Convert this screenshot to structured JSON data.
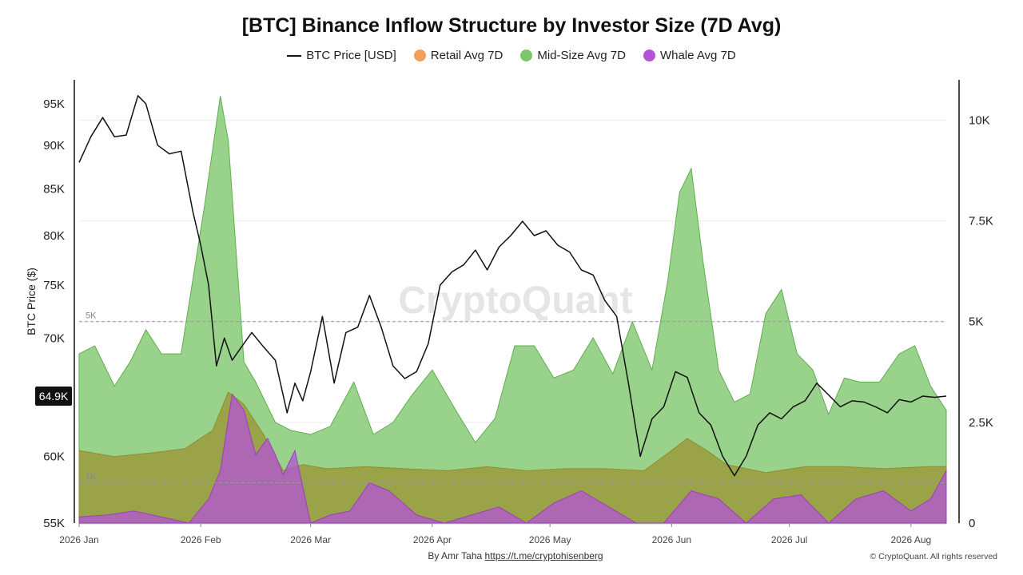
{
  "title": "[BTC] Binance Inflow Structure by Investor Size (7D Avg)",
  "legend": {
    "price": "BTC Price [USD]",
    "retail": "Retail Avg 7D",
    "midsize": "Mid-Size Avg 7D",
    "whale": "Whale Avg 7D"
  },
  "colors": {
    "price": "#111111",
    "retail": "#f0a05a",
    "midsize": "#7cc66a",
    "whale": "#b453d6",
    "midsize_fill": "#7cc66a",
    "olive_overlap": "#9a9a3c"
  },
  "watermark": "CryptoQuant",
  "price_badge": "64.9K",
  "footer": {
    "author_prefix": "By Amr Taha",
    "author_link": "https://t.me/cryptohisenberg",
    "copyright": "© CryptoQuant. All rights reserved"
  },
  "chart_data": {
    "type": "line",
    "title": "[BTC] Binance Inflow Structure by Investor Size (7D Avg)",
    "ylabel_left": "BTC Price ($)",
    "ylabel_right": "",
    "x_range": [
      "2026-01-01",
      "2026-08-10"
    ],
    "x_ticks": [
      "2026 Jan",
      "2026 Feb",
      "2026 Mar",
      "2026 Apr",
      "2026 May",
      "2026 Jun",
      "2026 Jul",
      "2026 Aug"
    ],
    "y_left_ticks": [
      "55K",
      "60K",
      "65K",
      "70K",
      "75K",
      "80K",
      "85K",
      "90K",
      "95K"
    ],
    "y_left_scale": "log",
    "y_left_range": [
      55000,
      98000
    ],
    "y_right_ticks": [
      "0",
      "2.5K",
      "5K",
      "7.5K",
      "10K"
    ],
    "y_right_range": [
      0,
      11000
    ],
    "reference_lines": [
      {
        "label": "5K",
        "value": 5000
      },
      {
        "label": "1K",
        "value": 1000
      }
    ],
    "grid": true,
    "legend_position": "top-center",
    "series": [
      {
        "name": "BTC Price [USD]",
        "axis": "left",
        "style": "line",
        "x": [
          "2026-01-01",
          "2026-01-04",
          "2026-01-07",
          "2026-01-10",
          "2026-01-13",
          "2026-01-16",
          "2026-01-18",
          "2026-01-21",
          "2026-01-24",
          "2026-01-27",
          "2026-01-30",
          "2026-02-01",
          "2026-02-03",
          "2026-02-05",
          "2026-02-07",
          "2026-02-09",
          "2026-02-11",
          "2026-02-14",
          "2026-02-17",
          "2026-02-20",
          "2026-02-23",
          "2026-02-25",
          "2026-02-27",
          "2026-03-01",
          "2026-03-04",
          "2026-03-07",
          "2026-03-10",
          "2026-03-13",
          "2026-03-16",
          "2026-03-19",
          "2026-03-22",
          "2026-03-25",
          "2026-03-28",
          "2026-03-31",
          "2026-04-03",
          "2026-04-06",
          "2026-04-09",
          "2026-04-12",
          "2026-04-15",
          "2026-04-18",
          "2026-04-21",
          "2026-04-24",
          "2026-04-27",
          "2026-04-30",
          "2026-05-03",
          "2026-05-06",
          "2026-05-09",
          "2026-05-12",
          "2026-05-15",
          "2026-05-18",
          "2026-05-21",
          "2026-05-24",
          "2026-05-27",
          "2026-05-30",
          "2026-06-02",
          "2026-06-05",
          "2026-06-08",
          "2026-06-11",
          "2026-06-14",
          "2026-06-17",
          "2026-06-20",
          "2026-06-23",
          "2026-06-26",
          "2026-06-29",
          "2026-07-02",
          "2026-07-05",
          "2026-07-08",
          "2026-07-11",
          "2026-07-14",
          "2026-07-17",
          "2026-07-20",
          "2026-07-23",
          "2026-07-26",
          "2026-07-29",
          "2026-08-01",
          "2026-08-04",
          "2026-08-07",
          "2026-08-10"
        ],
        "values": [
          88000,
          91000,
          93300,
          91000,
          91200,
          96000,
          95000,
          90000,
          89000,
          89300,
          82500,
          79000,
          75000,
          67500,
          70000,
          68000,
          69000,
          70500,
          69200,
          68000,
          63500,
          66000,
          64500,
          67000,
          72000,
          66000,
          70500,
          71000,
          74000,
          71000,
          67500,
          66400,
          67000,
          69500,
          75000,
          76300,
          77000,
          78500,
          76500,
          78800,
          80000,
          81500,
          80000,
          80500,
          79000,
          78300,
          76500,
          76000,
          73500,
          72000,
          66000,
          60000,
          63000,
          64000,
          67000,
          66500,
          63500,
          62500,
          60000,
          58500,
          60000,
          62500,
          63500,
          63000,
          64000,
          64500,
          66000,
          65000,
          64000,
          64500,
          64400,
          64000,
          63500,
          64600,
          64400,
          64900,
          64800,
          64900
        ]
      },
      {
        "name": "Retail Avg 7D",
        "axis": "right",
        "style": "area",
        "x": [
          "2026-01-01",
          "2026-01-10",
          "2026-01-20",
          "2026-01-28",
          "2026-02-04",
          "2026-02-08",
          "2026-02-12",
          "2026-02-17",
          "2026-02-22",
          "2026-02-27",
          "2026-03-05",
          "2026-03-15",
          "2026-03-25",
          "2026-04-05",
          "2026-04-15",
          "2026-04-25",
          "2026-05-05",
          "2026-05-15",
          "2026-05-25",
          "2026-06-01",
          "2026-06-05",
          "2026-06-10",
          "2026-06-15",
          "2026-06-25",
          "2026-07-05",
          "2026-07-15",
          "2026-07-25",
          "2026-08-05",
          "2026-08-10"
        ],
        "values": [
          1800,
          1650,
          1750,
          1850,
          2300,
          3250,
          2950,
          2200,
          1300,
          1450,
          1350,
          1400,
          1350,
          1300,
          1400,
          1300,
          1350,
          1350,
          1300,
          1800,
          2100,
          1800,
          1450,
          1250,
          1400,
          1400,
          1350,
          1400,
          1400
        ]
      },
      {
        "name": "Mid-Size Avg 7D",
        "axis": "right",
        "style": "area",
        "x": [
          "2026-01-01",
          "2026-01-05",
          "2026-01-10",
          "2026-01-14",
          "2026-01-18",
          "2026-01-22",
          "2026-01-27",
          "2026-02-02",
          "2026-02-06",
          "2026-02-08",
          "2026-02-12",
          "2026-02-15",
          "2026-02-20",
          "2026-02-24",
          "2026-03-01",
          "2026-03-06",
          "2026-03-12",
          "2026-03-17",
          "2026-03-22",
          "2026-03-27",
          "2026-04-01",
          "2026-04-07",
          "2026-04-12",
          "2026-04-17",
          "2026-04-22",
          "2026-04-27",
          "2026-05-02",
          "2026-05-07",
          "2026-05-12",
          "2026-05-17",
          "2026-05-22",
          "2026-05-27",
          "2026-05-31",
          "2026-06-03",
          "2026-06-06",
          "2026-06-09",
          "2026-06-13",
          "2026-06-17",
          "2026-06-21",
          "2026-06-25",
          "2026-06-29",
          "2026-07-03",
          "2026-07-07",
          "2026-07-11",
          "2026-07-15",
          "2026-07-19",
          "2026-07-24",
          "2026-07-29",
          "2026-08-02",
          "2026-08-06",
          "2026-08-10"
        ],
        "values": [
          4200,
          4400,
          3400,
          4000,
          4800,
          4200,
          4200,
          7900,
          10600,
          9500,
          4000,
          3500,
          2500,
          2300,
          2200,
          2400,
          3500,
          2200,
          2500,
          3200,
          3800,
          2800,
          2000,
          2600,
          4400,
          4400,
          3600,
          3800,
          4600,
          3700,
          5000,
          3800,
          6000,
          8200,
          8800,
          6500,
          3800,
          3000,
          3200,
          5200,
          5800,
          4200,
          3800,
          2700,
          3600,
          3500,
          3500,
          4200,
          4400,
          3400,
          2800
        ]
      },
      {
        "name": "Whale Avg 7D",
        "axis": "right",
        "style": "area",
        "x": [
          "2026-01-01",
          "2026-01-08",
          "2026-01-15",
          "2026-01-22",
          "2026-01-29",
          "2026-02-03",
          "2026-02-06",
          "2026-02-09",
          "2026-02-12",
          "2026-02-15",
          "2026-02-18",
          "2026-02-20",
          "2026-02-22",
          "2026-02-25",
          "2026-03-01",
          "2026-03-06",
          "2026-03-11",
          "2026-03-16",
          "2026-03-21",
          "2026-03-28",
          "2026-04-04",
          "2026-04-11",
          "2026-04-18",
          "2026-04-25",
          "2026-05-02",
          "2026-05-09",
          "2026-05-16",
          "2026-05-23",
          "2026-05-30",
          "2026-06-06",
          "2026-06-13",
          "2026-06-20",
          "2026-06-27",
          "2026-07-04",
          "2026-07-11",
          "2026-07-18",
          "2026-07-25",
          "2026-08-01",
          "2026-08-06",
          "2026-08-10"
        ],
        "values": [
          150,
          200,
          300,
          150,
          0,
          600,
          1300,
          3200,
          2800,
          1700,
          2100,
          1700,
          1200,
          1800,
          0,
          200,
          300,
          1000,
          800,
          200,
          0,
          200,
          400,
          0,
          500,
          800,
          400,
          0,
          0,
          800,
          600,
          0,
          600,
          700,
          0,
          600,
          800,
          300,
          600,
          1300
        ]
      }
    ]
  }
}
